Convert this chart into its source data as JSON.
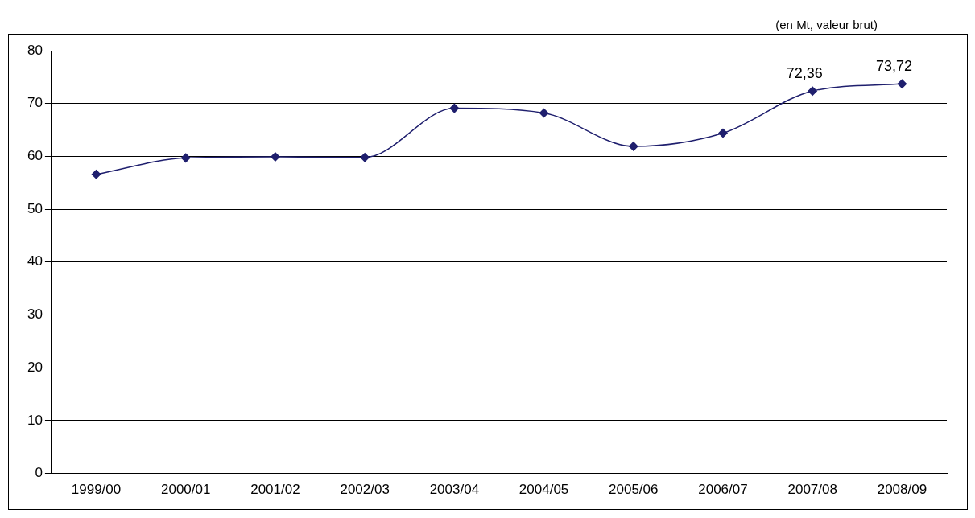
{
  "chart_data": {
    "type": "line",
    "annotations": [
      "(en Mt, valeur brut)"
    ],
    "categories": [
      "1999/00",
      "2000/01",
      "2001/02",
      "2002/03",
      "2003/04",
      "2004/05",
      "2005/06",
      "2006/07",
      "2007/08",
      "2008/09"
    ],
    "series": [
      {
        "color": "#1f1f6e",
        "values": [
          56.6,
          59.7,
          59.9,
          59.8,
          69.1,
          68.2,
          61.9,
          64.4,
          72.36,
          73.72
        ],
        "value_labels": [
          null,
          null,
          null,
          null,
          null,
          null,
          null,
          null,
          "72,36",
          "73,72"
        ]
      }
    ],
    "ylim": [
      0,
      80
    ],
    "yticks": [
      0,
      10,
      20,
      30,
      40,
      50,
      60,
      70,
      80
    ],
    "grid": "y",
    "legend": false,
    "marker": "diamond",
    "line_style": "solid"
  }
}
